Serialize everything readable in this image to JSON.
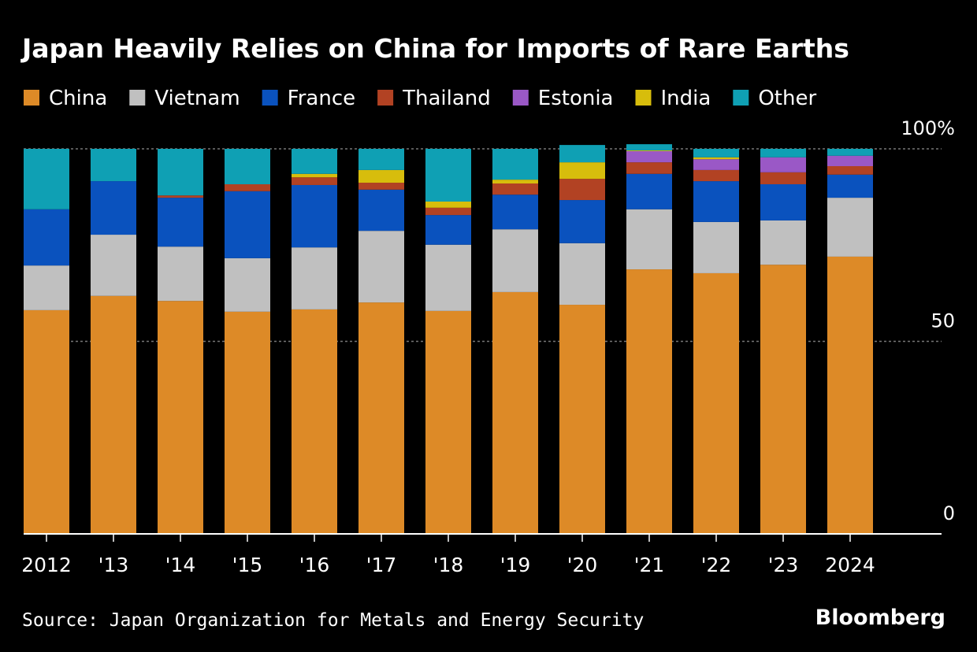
{
  "chart_data": {
    "type": "stacked-bar",
    "title": "Japan Heavily Relies on China for Imports of Rare Earths",
    "source": "Source: Japan Organization for Metals and Energy Security",
    "brand": "Bloomberg",
    "categories": [
      "2012",
      "'13",
      "'14",
      "'15",
      "'16",
      "'17",
      "'18",
      "'19",
      "'20",
      "'21",
      "'22",
      "'23",
      "2024"
    ],
    "series": [
      {
        "name": "China",
        "color": "#dd8a27",
        "values": [
          58.1,
          61.8,
          60.5,
          57.7,
          58.3,
          60.1,
          57.9,
          62.8,
          59.5,
          68.7,
          67.7,
          69.9,
          72.0
        ]
      },
      {
        "name": "Vietnam",
        "color": "#c0c0c0",
        "values": [
          11.6,
          15.9,
          14.1,
          13.9,
          16.1,
          18.6,
          17.2,
          16.3,
          16.0,
          15.6,
          13.3,
          11.5,
          15.3
        ]
      },
      {
        "name": "France",
        "color": "#0a52be",
        "values": [
          14.6,
          13.9,
          12.7,
          17.4,
          16.2,
          10.7,
          7.7,
          9.0,
          11.2,
          9.2,
          10.6,
          9.4,
          6.0
        ]
      },
      {
        "name": "Thailand",
        "color": "#b24223",
        "values": [
          0,
          0,
          0.6,
          1.8,
          2.0,
          1.8,
          1.9,
          2.9,
          5.5,
          3.0,
          2.9,
          3.1,
          2.2
        ]
      },
      {
        "name": "Estonia",
        "color": "#9a58c6",
        "values": [
          0,
          0,
          0,
          0,
          0,
          0,
          0,
          0,
          0,
          2.9,
          2.8,
          3.9,
          2.7
        ]
      },
      {
        "name": "India",
        "color": "#d7bd0c",
        "values": [
          0,
          0,
          0,
          0,
          0.9,
          3.3,
          1.6,
          1.0,
          4.3,
          0.2,
          0.5,
          0,
          0
        ]
      },
      {
        "name": "Other",
        "color": "#0fa0b4",
        "values": [
          15.7,
          8.4,
          12.1,
          9.2,
          6.5,
          5.5,
          13.7,
          8.0,
          4.5,
          1.6,
          2.2,
          2.2,
          1.8
        ]
      }
    ],
    "ylim": [
      0,
      100
    ],
    "yticks": [
      0,
      50,
      {
        "value": 100,
        "label": "100%"
      }
    ],
    "grid": true
  }
}
